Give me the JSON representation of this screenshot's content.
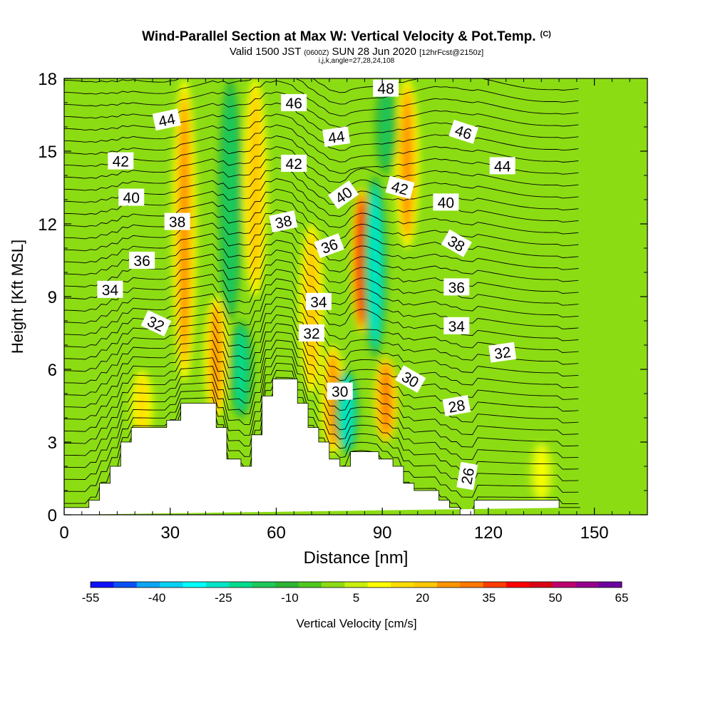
{
  "header": {
    "title": "Wind-Parallel Section at Max W: Vertical Velocity & Pot.Temp.",
    "title_mark": "(C)",
    "valid_prefix": "Valid 1500 JST",
    "valid_utc": "(0600Z)",
    "valid_date": "SUN 28 Jun 2020",
    "valid_fcst": "[12hrFcst@2150z]",
    "grid_info": "i,j,k,angle=27,28,24,108"
  },
  "chart_data": {
    "type": "heatmap",
    "xlabel": "Distance [nm]",
    "ylabel": "Height [Kft MSL]",
    "xlim": [
      0,
      165
    ],
    "ylim": [
      0,
      18
    ],
    "xticks": [
      0,
      30,
      60,
      90,
      120,
      150
    ],
    "yticks": [
      0,
      3,
      6,
      9,
      12,
      15,
      18
    ],
    "grid": false,
    "colorbar": {
      "label": "Vertical Velocity [cm/s]",
      "tick_labels": [
        "-55",
        "-40",
        "-25",
        "-10",
        "5",
        "20",
        "35",
        "50",
        "65"
      ],
      "tick_values": [
        -55,
        -40,
        -25,
        -10,
        5,
        20,
        35,
        50,
        65
      ],
      "colors": [
        "#1010ff",
        "#0a50f5",
        "#0aa5f5",
        "#05d2f5",
        "#00ffff",
        "#00e6c8",
        "#00dc8c",
        "#1ec85a",
        "#2db432",
        "#50c81e",
        "#8cdc14",
        "#c8f00a",
        "#ffff00",
        "#ffdc00",
        "#ffc800",
        "#ff9600",
        "#ff7800",
        "#ff3c00",
        "#ff0000",
        "#dc0014",
        "#be006e",
        "#96008c",
        "#6e00a0"
      ]
    },
    "background_color": "#8cdc14",
    "velocity_features": [
      {
        "kind": "updraft",
        "x": 34,
        "y0": 5.5,
        "y1": 18,
        "value": 25
      },
      {
        "kind": "downdraft",
        "x": 47,
        "y0": 8,
        "y1": 18,
        "value": -18
      },
      {
        "kind": "updraft",
        "x": 54,
        "y0": 9,
        "y1": 18,
        "value": 20
      },
      {
        "kind": "updraft",
        "x": 43,
        "y0": 4,
        "y1": 9,
        "value": 28
      },
      {
        "kind": "downdraft",
        "x": 50,
        "y0": 4,
        "y1": 8,
        "value": -20
      },
      {
        "kind": "updraft",
        "x": 70,
        "y0": 5,
        "y1": 12,
        "value": 22
      },
      {
        "kind": "updraft",
        "x": 76,
        "y0": 2.5,
        "y1": 7,
        "value": 25
      },
      {
        "kind": "updraft",
        "x": 84,
        "y0": 7.5,
        "y1": 13.5,
        "value": 40
      },
      {
        "kind": "downdraft",
        "x": 88,
        "y0": 6.5,
        "y1": 14,
        "value": -28
      },
      {
        "kind": "downdraft",
        "x": 80,
        "y0": 2.5,
        "y1": 6,
        "value": -25
      },
      {
        "kind": "updraft",
        "x": 91,
        "y0": 3,
        "y1": 6.5,
        "value": 30
      },
      {
        "kind": "updraft",
        "x": 97,
        "y0": 11,
        "y1": 18,
        "value": 25
      },
      {
        "kind": "downdraft",
        "x": 91,
        "y0": 14,
        "y1": 18,
        "value": -15
      },
      {
        "kind": "updraft",
        "x": 135,
        "y0": 0.5,
        "y1": 3,
        "value": 8
      },
      {
        "kind": "updraft",
        "x": 22,
        "y0": 3,
        "y1": 6,
        "value": 15
      }
    ],
    "terrain": {
      "x": [
        0,
        7,
        7,
        10,
        10,
        13,
        13,
        16,
        16,
        19,
        19,
        29,
        29,
        33,
        33,
        43,
        43,
        46,
        46,
        50,
        50,
        53,
        53,
        56,
        56,
        59,
        59,
        66,
        66,
        69,
        69,
        72,
        72,
        75,
        75,
        78,
        78,
        81,
        81,
        89,
        89,
        93,
        93,
        96,
        96,
        99,
        99,
        106,
        106,
        109,
        109,
        112,
        112,
        116,
        116,
        140,
        140,
        146,
        146,
        165
      ],
      "y": [
        0.3,
        0.3,
        0.6,
        0.6,
        1.3,
        1.3,
        2.0,
        2.0,
        3.0,
        3.0,
        3.6,
        3.6,
        3.9,
        3.9,
        4.6,
        4.6,
        3.6,
        3.6,
        2.3,
        2.3,
        2.0,
        2.0,
        3.3,
        3.3,
        4.9,
        4.9,
        5.6,
        5.6,
        4.6,
        4.6,
        3.6,
        3.6,
        3.0,
        3.0,
        2.3,
        2.3,
        2.0,
        2.0,
        2.6,
        2.6,
        2.3,
        2.3,
        2.0,
        2.0,
        1.3,
        1.3,
        1.0,
        1.0,
        0.6,
        0.6,
        0.3,
        0.3,
        0.0,
        0.0,
        0.6,
        0.6,
        0.3,
        0.3
      ]
    },
    "isentrope_labels": [
      {
        "text": "44",
        "x": 29,
        "y": 16.3,
        "angle": -12
      },
      {
        "text": "42",
        "x": 16,
        "y": 14.6,
        "angle": 0
      },
      {
        "text": "40",
        "x": 19,
        "y": 13.1,
        "angle": 0
      },
      {
        "text": "38",
        "x": 32,
        "y": 12.1,
        "angle": 0
      },
      {
        "text": "36",
        "x": 22,
        "y": 10.5,
        "angle": 0
      },
      {
        "text": "34",
        "x": 13,
        "y": 9.3,
        "angle": 0
      },
      {
        "text": "32",
        "x": 26,
        "y": 7.9,
        "angle": 25
      },
      {
        "text": "46",
        "x": 65,
        "y": 17.0,
        "angle": 0
      },
      {
        "text": "44",
        "x": 77,
        "y": 15.6,
        "angle": -8
      },
      {
        "text": "42",
        "x": 65,
        "y": 14.5,
        "angle": 0
      },
      {
        "text": "40",
        "x": 79,
        "y": 13.2,
        "angle": -35
      },
      {
        "text": "38",
        "x": 62,
        "y": 12.1,
        "angle": -12
      },
      {
        "text": "36",
        "x": 75,
        "y": 11.1,
        "angle": -20
      },
      {
        "text": "34",
        "x": 72,
        "y": 8.8,
        "angle": 0
      },
      {
        "text": "32",
        "x": 70,
        "y": 7.5,
        "angle": 0
      },
      {
        "text": "30",
        "x": 78,
        "y": 5.1,
        "angle": 0
      },
      {
        "text": "48",
        "x": 91,
        "y": 17.6,
        "angle": 0
      },
      {
        "text": "46",
        "x": 113,
        "y": 15.8,
        "angle": 18
      },
      {
        "text": "44",
        "x": 124,
        "y": 14.4,
        "angle": 0
      },
      {
        "text": "42",
        "x": 95,
        "y": 13.5,
        "angle": 15
      },
      {
        "text": "40",
        "x": 108,
        "y": 12.9,
        "angle": 0
      },
      {
        "text": "38",
        "x": 111,
        "y": 11.2,
        "angle": 30
      },
      {
        "text": "36",
        "x": 111,
        "y": 9.4,
        "angle": 0
      },
      {
        "text": "34",
        "x": 111,
        "y": 7.8,
        "angle": 0
      },
      {
        "text": "32",
        "x": 124,
        "y": 6.7,
        "angle": -8
      },
      {
        "text": "30",
        "x": 98,
        "y": 5.6,
        "angle": 30
      },
      {
        "text": "28",
        "x": 111,
        "y": 4.5,
        "angle": -10
      },
      {
        "text": "26",
        "x": 114,
        "y": 1.6,
        "angle": -80
      }
    ]
  }
}
